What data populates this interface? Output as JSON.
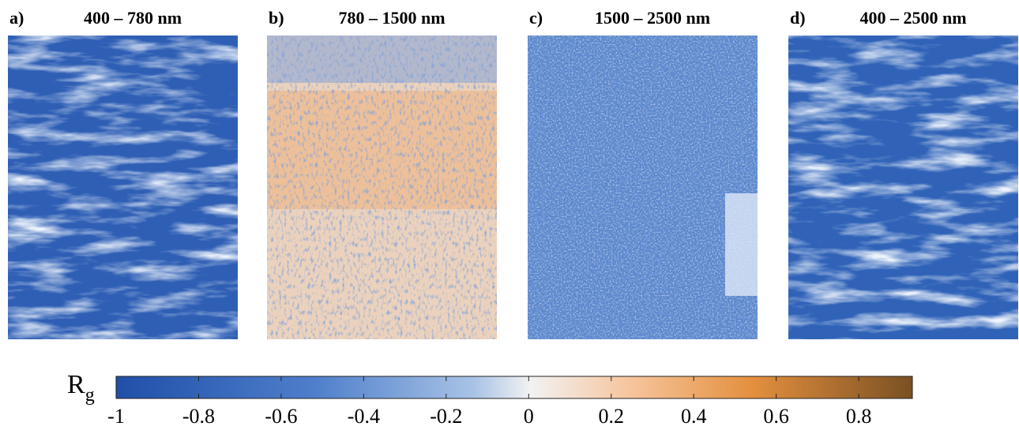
{
  "panels": [
    {
      "label": "a)",
      "title": "400 – 780 nm"
    },
    {
      "label": "b)",
      "title": "780 – 1500 nm"
    },
    {
      "label": "c)",
      "title": "1500 – 2500 nm"
    },
    {
      "label": "d)",
      "title": "400 – 2500 nm"
    }
  ],
  "colorbar": {
    "label": "R",
    "label_subscript": "g",
    "lim": [
      -1,
      0.93
    ],
    "ticks": [
      -1,
      -0.8,
      -0.6,
      -0.4,
      -0.2,
      0,
      0.2,
      0.4,
      0.6,
      0.8
    ]
  }
}
